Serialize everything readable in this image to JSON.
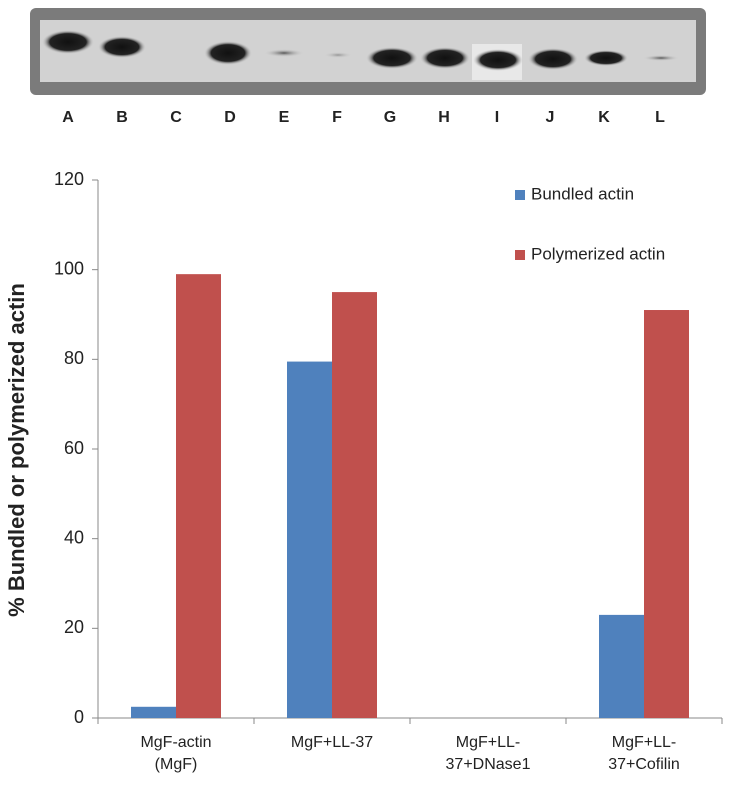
{
  "gel": {
    "lanes": [
      "A",
      "B",
      "C",
      "D",
      "E",
      "F",
      "G",
      "H",
      "I",
      "J",
      "K",
      "L"
    ]
  },
  "chart_data": {
    "type": "bar",
    "y_label": "% Bundled or polymerized actin",
    "categories": [
      "MgF-actin (MgF)",
      "MgF+LL-37",
      "MgF+LL-37+DNase1",
      "MgF+LL-37+Cofilin"
    ],
    "series": [
      {
        "name": "Bundled actin",
        "color": "#4f81bd",
        "values": [
          2.5,
          79.5,
          0,
          23
        ]
      },
      {
        "name": "Polymerized actin",
        "color": "#c0504d",
        "values": [
          99,
          95,
          0,
          91
        ]
      }
    ],
    "ylim": [
      0,
      120
    ],
    "yticks": [
      0,
      20,
      40,
      60,
      80,
      100,
      120
    ],
    "grid": false,
    "legend": "top-right"
  }
}
